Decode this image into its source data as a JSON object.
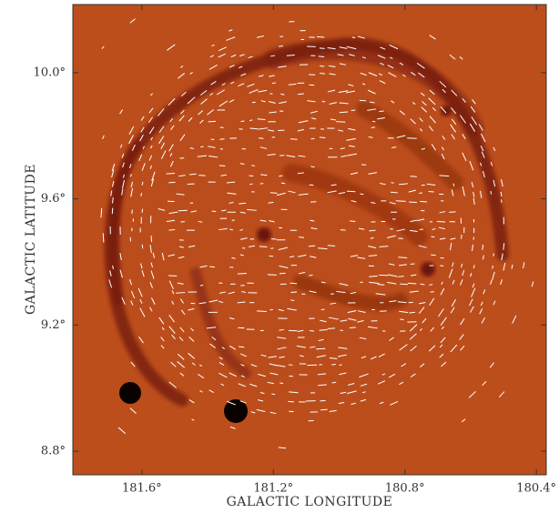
{
  "chart_data": {
    "type": "image",
    "xlabel": "GALACTIC LONGITUDE",
    "ylabel": "GALACTIC LATITUDE",
    "xlim": [
      181.81,
      180.37
    ],
    "ylim": [
      8.725,
      10.216
    ],
    "xticks": [
      {
        "value": 181.6,
        "label": "181.6°"
      },
      {
        "value": 181.2,
        "label": "181.2°"
      },
      {
        "value": 180.8,
        "label": "180.8°"
      },
      {
        "value": 180.4,
        "label": "180.4°"
      }
    ],
    "yticks": [
      {
        "value": 8.8,
        "label": "8.8°"
      },
      {
        "value": 9.2,
        "label": "9.2°"
      },
      {
        "value": 9.6,
        "label": "9.6°"
      },
      {
        "value": 10.0,
        "label": "10.0°"
      }
    ]
  }
}
